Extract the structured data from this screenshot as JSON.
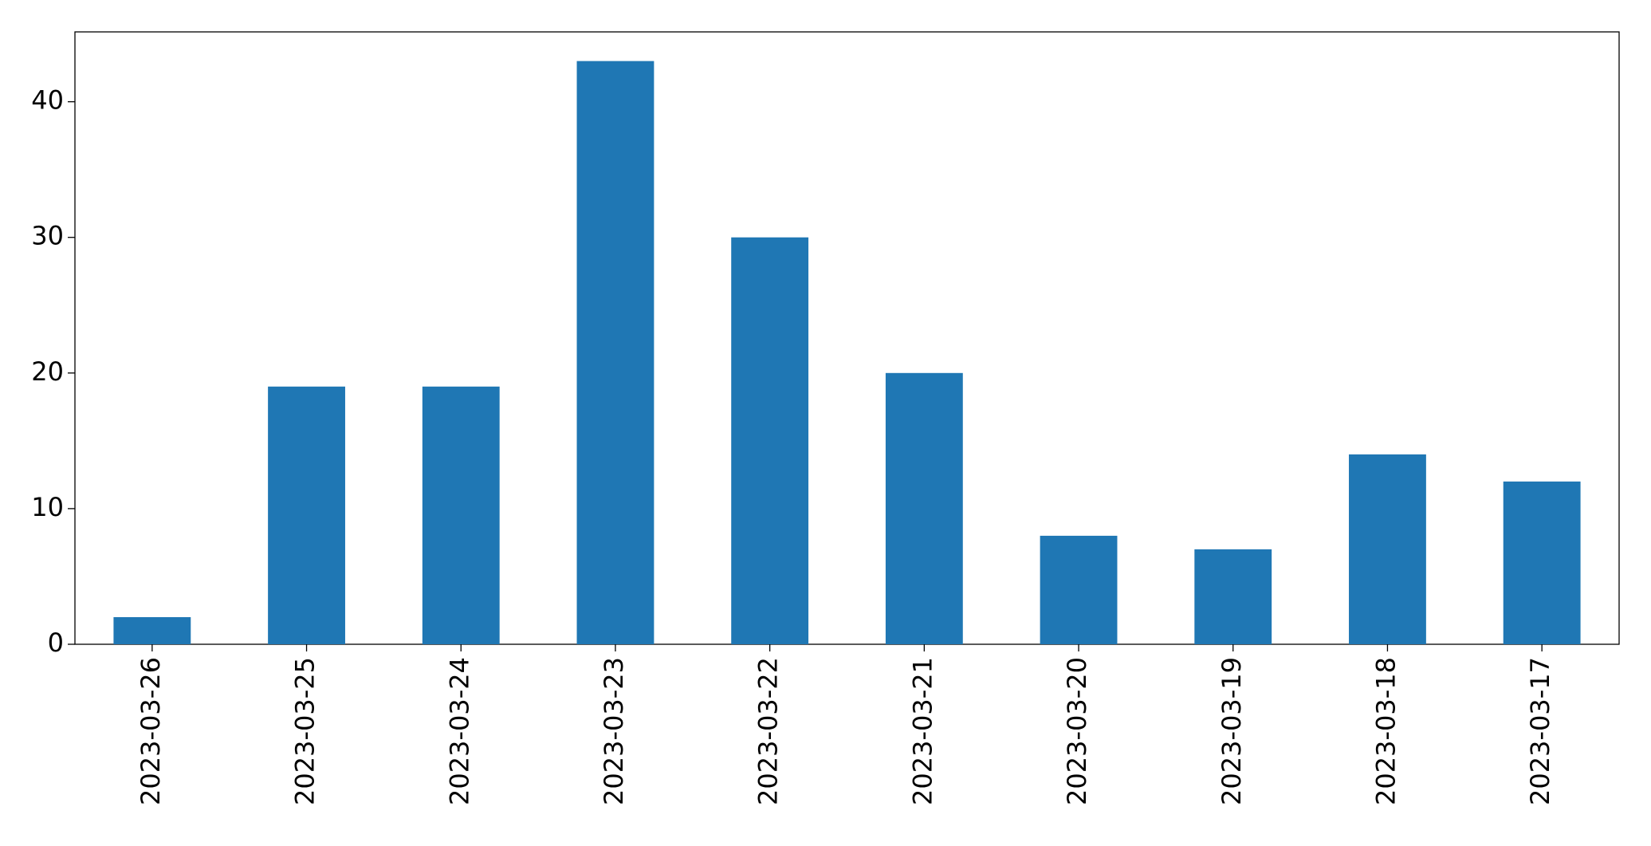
{
  "chart_data": {
    "type": "bar",
    "categories": [
      "2023-03-26",
      "2023-03-25",
      "2023-03-24",
      "2023-03-23",
      "2023-03-22",
      "2023-03-21",
      "2023-03-20",
      "2023-03-19",
      "2023-03-18",
      "2023-03-17"
    ],
    "values": [
      2,
      19,
      19,
      43,
      30,
      20,
      8,
      7,
      14,
      12
    ],
    "color": "#1f77b4",
    "ylim": [
      0,
      45.15
    ],
    "yticks": [
      0,
      10,
      20,
      30,
      40
    ],
    "grid": false
  }
}
